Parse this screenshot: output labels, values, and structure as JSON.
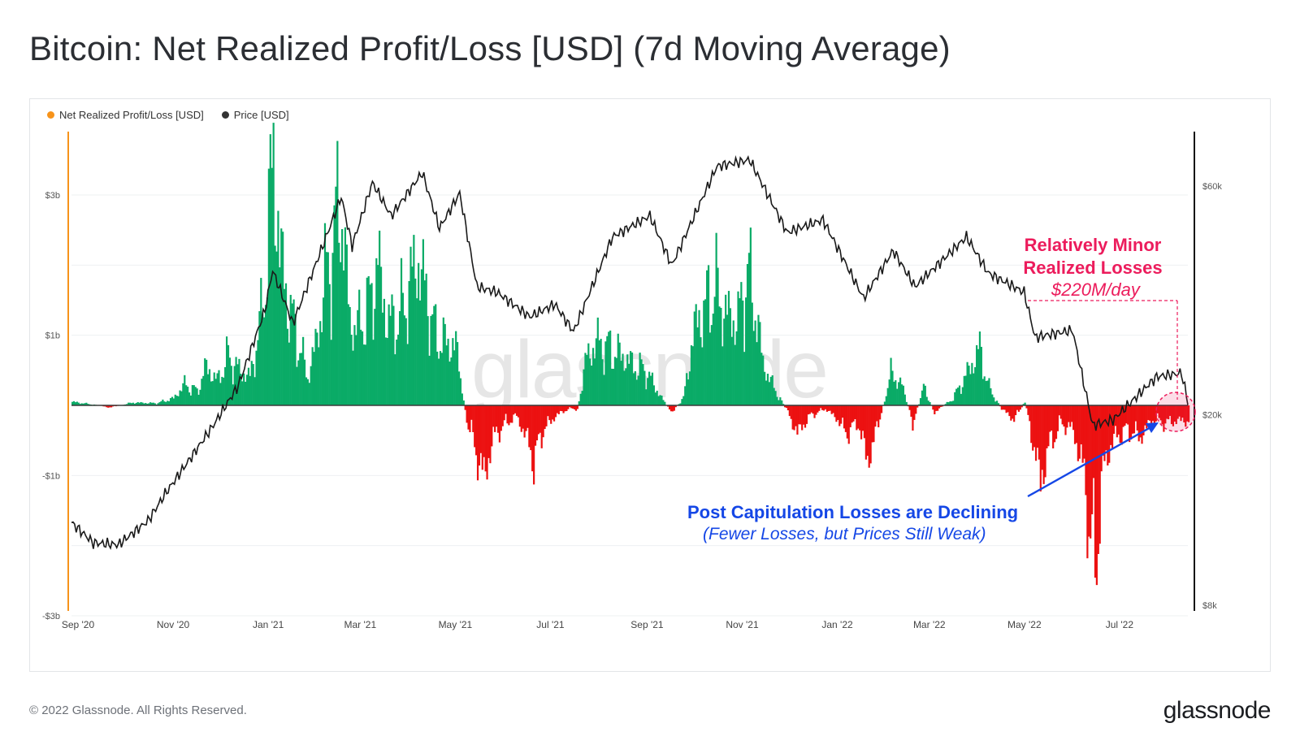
{
  "page": {
    "title": "Bitcoin: Net Realized Profit/Loss [USD] (7d Moving Average)",
    "copyright": "© 2022 Glassnode. All Rights Reserved.",
    "brand": "glassnode",
    "watermark": "glassnode"
  },
  "legend": [
    {
      "label": "Net Realized Profit/Loss [USD]",
      "color": "#f7931a"
    },
    {
      "label": "Price [USD]",
      "color": "#333333"
    }
  ],
  "annotations": {
    "minor_losses": {
      "line1": "Relatively Minor",
      "line2": "Realized Losses",
      "value": "$220M/day",
      "color": "#ec1c5c"
    },
    "declining": {
      "line1": "Post Capitulation Losses are Declining",
      "line2": "(Fewer Losses, but Prices Still Weak)",
      "color": "#1547e6"
    }
  },
  "chart_data": {
    "type": "bar",
    "colors": {
      "profit": "#0aab67",
      "loss": "#ec1111",
      "price": "#1a1a1a"
    },
    "x_range": [
      "2020-09-01",
      "2022-08-18"
    ],
    "x_ticks": [
      "Sep '20",
      "Nov '20",
      "Jan '21",
      "Mar '21",
      "May '21",
      "Jul '21",
      "Sep '21",
      "Nov '21",
      "Jan '22",
      "Mar '22",
      "May '22",
      "Jul '22"
    ],
    "y_left": {
      "scale": "linear",
      "range": [
        -3000000000,
        3000000000
      ],
      "ticks": [
        3000000000,
        1000000000,
        -1000000000,
        -3000000000
      ],
      "tick_labels": [
        "$3b",
        "$1b",
        "-$1b",
        "-$3b"
      ]
    },
    "y_right": {
      "scale": "log",
      "range": [
        8000,
        80000
      ],
      "ticks": [
        60000,
        20000,
        8000
      ],
      "tick_labels": [
        "$60k",
        "$20k",
        "$8k"
      ]
    },
    "grid": true,
    "legend_position": "top-left",
    "series": [
      {
        "name": "Net Realized Profit/Loss [USD]",
        "kind": "bar",
        "unit": "USD",
        "points": [
          [
            "2020-09-01",
            50000000.0
          ],
          [
            "2020-09-15",
            10000000.0
          ],
          [
            "2020-09-25",
            -30000000.0
          ],
          [
            "2020-10-10",
            40000000.0
          ],
          [
            "2020-10-25",
            30000000.0
          ],
          [
            "2020-11-05",
            100000000.0
          ],
          [
            "2020-11-12",
            300000000.0
          ],
          [
            "2020-11-20",
            200000000.0
          ],
          [
            "2020-11-26",
            550000000.0
          ],
          [
            "2020-12-03",
            350000000.0
          ],
          [
            "2020-12-10",
            700000000.0
          ],
          [
            "2020-12-17",
            500000000.0
          ],
          [
            "2020-12-24",
            400000000.0
          ],
          [
            "2020-12-31",
            1200000000.0
          ],
          [
            "2021-01-03",
            1900000000.0
          ],
          [
            "2021-01-08",
            3600000000.0
          ],
          [
            "2021-01-12",
            2200000000.0
          ],
          [
            "2021-01-18",
            1400000000.0
          ],
          [
            "2021-01-24",
            900000000.0
          ],
          [
            "2021-01-30",
            400000000.0
          ],
          [
            "2021-02-05",
            950000000.0
          ],
          [
            "2021-02-10",
            1800000000.0
          ],
          [
            "2021-02-14",
            2100000000.0
          ],
          [
            "2021-02-20",
            3000000000.0
          ],
          [
            "2021-02-26",
            1200000000.0
          ],
          [
            "2021-03-03",
            1100000000.0
          ],
          [
            "2021-03-10",
            1400000000.0
          ],
          [
            "2021-03-16",
            2000000000.0
          ],
          [
            "2021-03-22",
            1200000000.0
          ],
          [
            "2021-03-28",
            1200000000.0
          ],
          [
            "2021-04-03",
            1500000000.0
          ],
          [
            "2021-04-10",
            2100000000.0
          ],
          [
            "2021-04-16",
            1600000000.0
          ],
          [
            "2021-04-22",
            1000000000.0
          ],
          [
            "2021-04-28",
            900000000.0
          ],
          [
            "2021-05-05",
            850000000.0
          ],
          [
            "2021-05-12",
            -200000000.0
          ],
          [
            "2021-05-18",
            -650000000.0
          ],
          [
            "2021-05-23",
            -1050000000.0
          ],
          [
            "2021-05-29",
            -450000000.0
          ],
          [
            "2021-06-06",
            -250000000.0
          ],
          [
            "2021-06-13",
            -150000000.0
          ],
          [
            "2021-06-20",
            -500000000.0
          ],
          [
            "2021-06-24",
            -800000000.0
          ],
          [
            "2021-06-30",
            -350000000.0
          ],
          [
            "2021-07-08",
            -150000000.0
          ],
          [
            "2021-07-16",
            -50000000.0
          ],
          [
            "2021-07-22",
            -50000000.0
          ],
          [
            "2021-07-28",
            700000000.0
          ],
          [
            "2021-08-04",
            900000000.0
          ],
          [
            "2021-08-12",
            800000000.0
          ],
          [
            "2021-08-20",
            700000000.0
          ],
          [
            "2021-08-28",
            550000000.0
          ],
          [
            "2021-09-04",
            500000000.0
          ],
          [
            "2021-09-10",
            250000000.0
          ],
          [
            "2021-09-20",
            -100000000.0
          ],
          [
            "2021-09-28",
            100000000.0
          ],
          [
            "2021-10-05",
            1100000000.0
          ],
          [
            "2021-10-12",
            1400000000.0
          ],
          [
            "2021-10-18",
            1700000000.0
          ],
          [
            "2021-10-25",
            1300000000.0
          ],
          [
            "2021-11-02",
            1200000000.0
          ],
          [
            "2021-11-08",
            1900000000.0
          ],
          [
            "2021-11-13",
            1400000000.0
          ],
          [
            "2021-11-18",
            600000000.0
          ],
          [
            "2021-11-25",
            250000000.0
          ],
          [
            "2021-12-04",
            -100000000.0
          ],
          [
            "2021-12-10",
            -400000000.0
          ],
          [
            "2021-12-18",
            -150000000.0
          ],
          [
            "2021-12-28",
            -50000000.0
          ],
          [
            "2022-01-05",
            -200000000.0
          ],
          [
            "2022-01-10",
            -400000000.0
          ],
          [
            "2022-01-18",
            -250000000.0
          ],
          [
            "2022-01-24",
            -800000000.0
          ],
          [
            "2022-01-30",
            -350000000.0
          ],
          [
            "2022-02-08",
            450000000.0
          ],
          [
            "2022-02-15",
            300000000.0
          ],
          [
            "2022-02-22",
            -250000000.0
          ],
          [
            "2022-03-01",
            250000000.0
          ],
          [
            "2022-03-08",
            -100000000.0
          ],
          [
            "2022-03-20",
            100000000.0
          ],
          [
            "2022-03-30",
            500000000.0
          ],
          [
            "2022-04-06",
            800000000.0
          ],
          [
            "2022-04-12",
            250000000.0
          ],
          [
            "2022-04-20",
            -50000000.0
          ],
          [
            "2022-04-28",
            -200000000.0
          ],
          [
            "2022-05-05",
            50000000.0
          ],
          [
            "2022-05-10",
            -500000000.0
          ],
          [
            "2022-05-15",
            -1100000000.0
          ],
          [
            "2022-05-20",
            -600000000.0
          ],
          [
            "2022-05-28",
            -250000000.0
          ],
          [
            "2022-06-05",
            -350000000.0
          ],
          [
            "2022-06-12",
            -1000000000.0
          ],
          [
            "2022-06-16",
            -1900000000.0
          ],
          [
            "2022-06-19",
            -2250000000.0
          ],
          [
            "2022-06-25",
            -800000000.0
          ],
          [
            "2022-07-02",
            -450000000.0
          ],
          [
            "2022-07-10",
            -350000000.0
          ],
          [
            "2022-07-18",
            -450000000.0
          ],
          [
            "2022-07-26",
            -200000000.0
          ],
          [
            "2022-08-03",
            -250000000.0
          ],
          [
            "2022-08-10",
            -220000000.0
          ],
          [
            "2022-08-18",
            -220000000.0
          ]
        ]
      },
      {
        "name": "Price [USD]",
        "kind": "line",
        "unit": "USD",
        "axis": "right",
        "points": [
          [
            "2020-09-01",
            11900
          ],
          [
            "2020-09-15",
            10800
          ],
          [
            "2020-10-01",
            10700
          ],
          [
            "2020-10-20",
            12000
          ],
          [
            "2020-11-01",
            13800
          ],
          [
            "2020-11-15",
            16000
          ],
          [
            "2020-12-01",
            19000
          ],
          [
            "2020-12-17",
            23000
          ],
          [
            "2021-01-03",
            33000
          ],
          [
            "2021-01-08",
            40000
          ],
          [
            "2021-01-21",
            31000
          ],
          [
            "2021-02-08",
            44000
          ],
          [
            "2021-02-21",
            57000
          ],
          [
            "2021-02-28",
            45000
          ],
          [
            "2021-03-13",
            61000
          ],
          [
            "2021-03-25",
            52000
          ],
          [
            "2021-04-14",
            64000
          ],
          [
            "2021-04-25",
            49000
          ],
          [
            "2021-05-08",
            58000
          ],
          [
            "2021-05-19",
            37000
          ],
          [
            "2021-06-01",
            36000
          ],
          [
            "2021-06-22",
            32000
          ],
          [
            "2021-07-08",
            34000
          ],
          [
            "2021-07-20",
            29800
          ],
          [
            "2021-08-14",
            47000
          ],
          [
            "2021-09-07",
            52000
          ],
          [
            "2021-09-21",
            41000
          ],
          [
            "2021-10-20",
            66000
          ],
          [
            "2021-11-10",
            68000
          ],
          [
            "2021-11-26",
            54000
          ],
          [
            "2021-12-04",
            48000
          ],
          [
            "2021-12-27",
            51000
          ],
          [
            "2022-01-22",
            35000
          ],
          [
            "2022-02-10",
            44000
          ],
          [
            "2022-02-24",
            37000
          ],
          [
            "2022-03-29",
            47000
          ],
          [
            "2022-04-12",
            39500
          ],
          [
            "2022-05-05",
            36000
          ],
          [
            "2022-05-12",
            29000
          ],
          [
            "2022-06-05",
            30000
          ],
          [
            "2022-06-18",
            19000
          ],
          [
            "2022-07-01",
            19500
          ],
          [
            "2022-07-29",
            24000
          ],
          [
            "2022-08-14",
            24400
          ],
          [
            "2022-08-18",
            21200
          ]
        ]
      }
    ]
  }
}
